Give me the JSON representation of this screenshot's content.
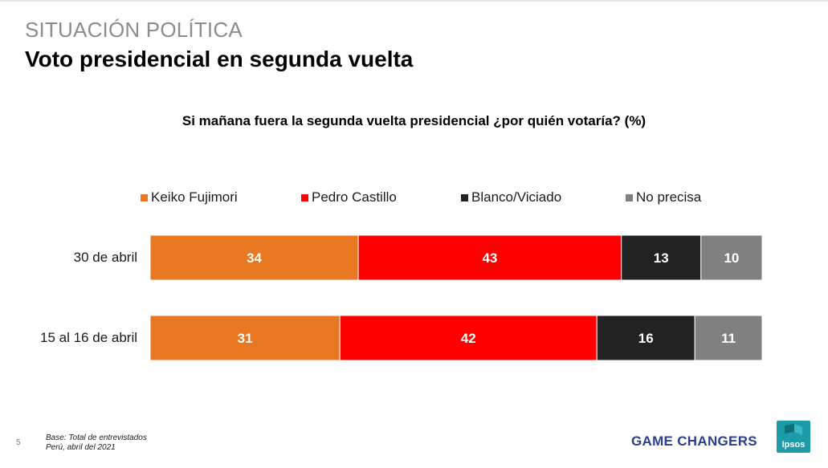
{
  "header": {
    "section": "SITUACIÓN POLÍTICA",
    "title": "Voto presidencial en segunda vuelta"
  },
  "chart_data": {
    "type": "bar",
    "orientation": "horizontal",
    "stacked": true,
    "title": "Si mañana fuera la segunda vuelta presidencial ¿por quién votaría? (%)",
    "categories": [
      "30 de abril",
      "15 al 16 de abril"
    ],
    "series": [
      {
        "name": "Keiko Fujimori",
        "color": "#E87722",
        "values": [
          34,
          31
        ]
      },
      {
        "name": "Pedro Castillo",
        "color": "#FF0000",
        "values": [
          43,
          42
        ]
      },
      {
        "name": "Blanco/Viciado",
        "color": "#222222",
        "values": [
          13,
          16
        ]
      },
      {
        "name": "No precisa",
        "color": "#808080",
        "values": [
          10,
          11
        ]
      }
    ],
    "legend_position": "top",
    "grid": false,
    "data_labels": true
  },
  "footer": {
    "page_number": "5",
    "base_line1": "Base: Total de entrevistados",
    "base_line2": "Perú, abril del 2021",
    "tagline": "GAME CHANGERS",
    "logo_text": "Ipsos"
  },
  "colors": {
    "tagline": "#2B3E8C",
    "logo": "#1C9BA8"
  }
}
